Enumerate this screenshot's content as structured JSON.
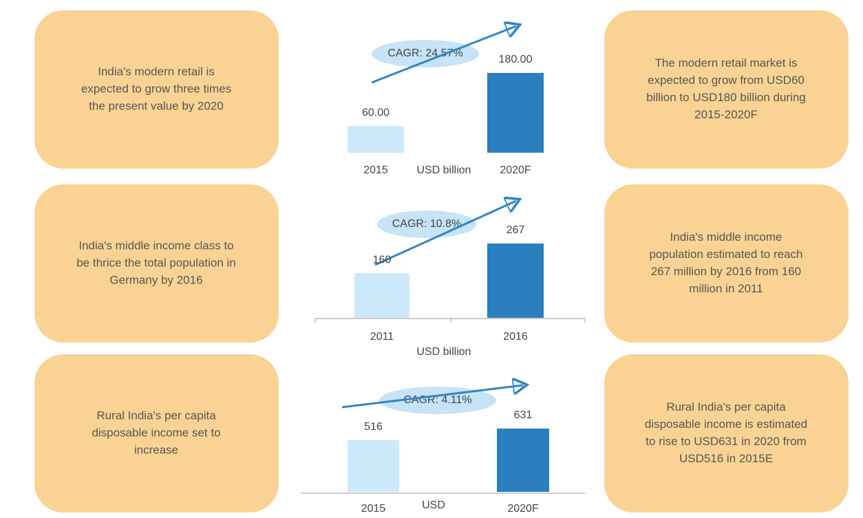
{
  "panels": [
    {
      "left": [
        "India's modern  retail is",
        "expected to grow three times",
        "the present value by 2020"
      ],
      "right": [
        "The modern retail market is",
        "expected to grow from USD60",
        "billion to USD180 billion during",
        "2015-2020F"
      ]
    },
    {
      "left": [
        "India's middle income class to",
        "be thrice the total population in",
        "Germany by 2016"
      ],
      "right": [
        "India's middle income",
        "population estimated to reach",
        "267 million by 2016 from 160",
        "million in 2011"
      ]
    },
    {
      "left": [
        "Rural India's per capita",
        "disposable income set to",
        "increase"
      ],
      "right": [
        "Rural India's per capita",
        "disposable income is estimated",
        "to rise to USD631 in 2020 from",
        "USD516 in 2015E"
      ]
    }
  ],
  "chart_data": [
    {
      "type": "bar",
      "annotation": "CAGR: 24.57%",
      "x_label": "USD  billion",
      "categories": [
        "2015",
        "2020F"
      ],
      "values": [
        60,
        180
      ],
      "value_labels": [
        "60.00",
        "180.00"
      ],
      "colors": [
        "#cce9fb",
        "#2b7fbe"
      ]
    },
    {
      "type": "bar",
      "annotation": "CAGR: 10.8%",
      "x_label": "USD  billion",
      "categories": [
        "2011",
        "2016"
      ],
      "values": [
        160,
        267
      ],
      "colors": [
        "#cce9fb",
        "#2b7fbe"
      ]
    },
    {
      "type": "bar",
      "annotation": "CAGR: 4.11%",
      "x_label": "USD",
      "categories": [
        "2015",
        "2020F"
      ],
      "values": [
        516,
        631
      ],
      "colors": [
        "#cce9fb",
        "#2b7fbe"
      ]
    }
  ]
}
